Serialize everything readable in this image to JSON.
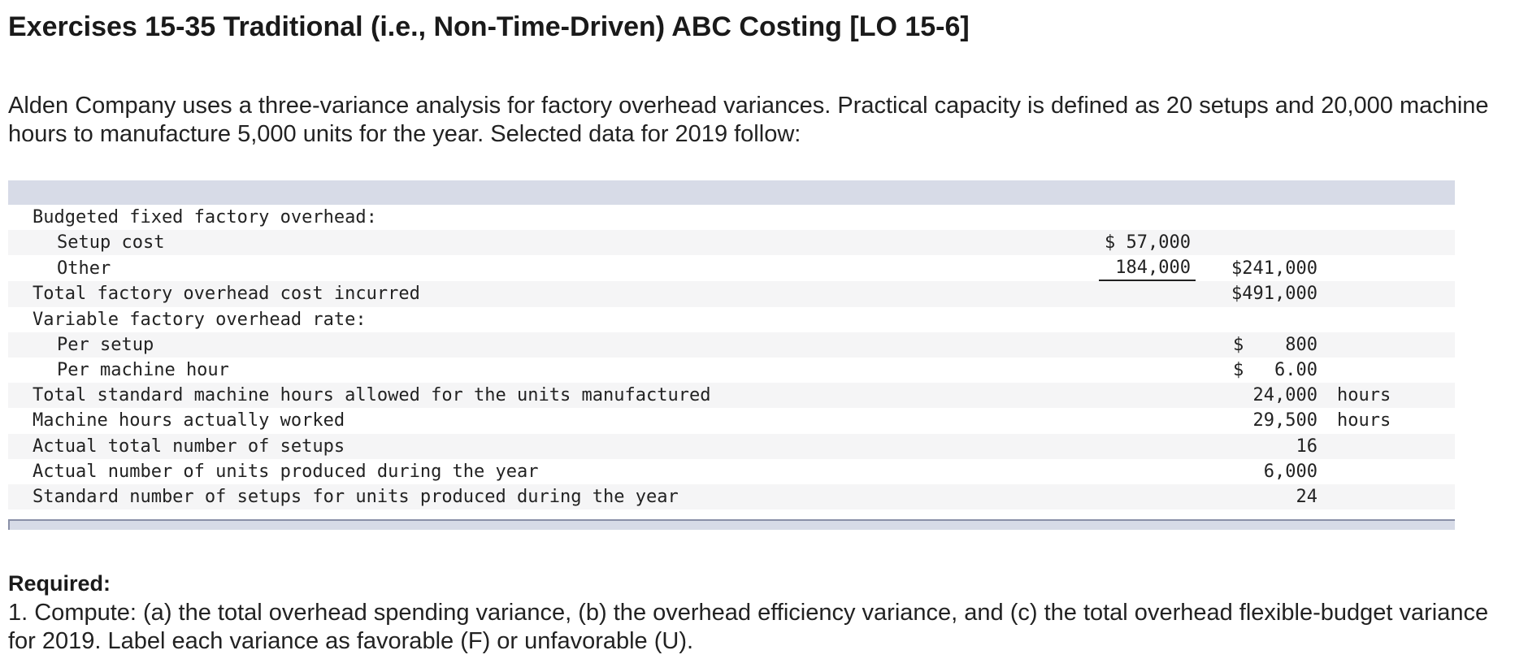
{
  "title": "Exercises 15-35 Traditional (i.e., Non-Time-Driven) ABC Costing [LO 15-6]",
  "intro": "Alden Company uses a three-variance analysis for factory overhead variances. Practical capacity is defined as 20 setups and 20,000 machine hours to manufacture 5,000 units for the year. Selected data for 2019 follow:",
  "table": {
    "rows": [
      {
        "label": "Budgeted fixed factory overhead:",
        "col1": "",
        "col2_dollar": "",
        "col2": "",
        "unit": ""
      },
      {
        "label": "Setup cost",
        "col1": "$ 57,000",
        "col2_dollar": "",
        "col2": "",
        "unit": ""
      },
      {
        "label": "Other",
        "col1": "184,000",
        "col2_dollar": "",
        "col2": "$241,000",
        "unit": ""
      },
      {
        "label": "Total factory overhead cost incurred",
        "col1": "",
        "col2_dollar": "",
        "col2": "$491,000",
        "unit": ""
      },
      {
        "label": "Variable factory overhead rate:",
        "col1": "",
        "col2_dollar": "",
        "col2": "",
        "unit": ""
      },
      {
        "label": "Per setup",
        "col1": "",
        "col2_dollar": "$",
        "col2": "800",
        "unit": ""
      },
      {
        "label": "Per machine hour",
        "col1": "",
        "col2_dollar": "$",
        "col2": "6.00",
        "unit": ""
      },
      {
        "label": "Total standard machine hours allowed for the units manufactured",
        "col1": "",
        "col2_dollar": "",
        "col2": "24,000",
        "unit": "hours"
      },
      {
        "label": "Machine hours actually worked",
        "col1": "",
        "col2_dollar": "",
        "col2": "29,500",
        "unit": "hours"
      },
      {
        "label": "Actual total number of setups",
        "col1": "",
        "col2_dollar": "",
        "col2": "16",
        "unit": ""
      },
      {
        "label": "Actual number of units produced during the year",
        "col1": "",
        "col2_dollar": "",
        "col2": "6,000",
        "unit": ""
      },
      {
        "label": "Standard number of setups for units produced during the year",
        "col1": "",
        "col2_dollar": "",
        "col2": "24",
        "unit": ""
      }
    ]
  },
  "required": {
    "heading": "Required:",
    "text": "1. Compute: (a) the total overhead spending variance, (b) the overhead efficiency variance, and (c) the total overhead flexible-budget variance for 2019. Label each variance as favorable (F) or unfavorable (U)."
  }
}
